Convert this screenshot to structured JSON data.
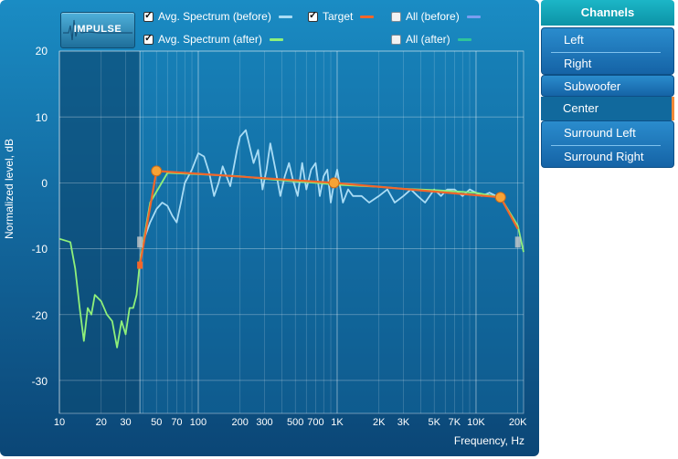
{
  "impulse_button": {
    "label": "IMPULSE"
  },
  "legend": [
    {
      "label": "Avg. Spectrum (before)",
      "checked": true,
      "color": "#a9dcf5"
    },
    {
      "label": "Target",
      "checked": true,
      "color": "#f2662a"
    },
    {
      "label": "All (before)",
      "checked": false,
      "color": "#7a9ef0"
    },
    {
      "label": "Avg. Spectrum (after)",
      "checked": true,
      "color": "#8ff07a"
    },
    {
      "label": "All (after)",
      "checked": false,
      "color": "#2ec49a"
    }
  ],
  "axes": {
    "ylabel": "Normalized level, dB",
    "xlabel": "Frequency, Hz",
    "yticks": [
      "20",
      "10",
      "0",
      "-10",
      "-20",
      "-30"
    ],
    "xticks": [
      "10",
      "20",
      "30",
      "50",
      "70",
      "100",
      "200",
      "300",
      "500",
      "700",
      "1K",
      "2K",
      "3K",
      "5K",
      "7K",
      "10K",
      "20K"
    ]
  },
  "sidebar": {
    "header": "Channels",
    "channels": [
      "Left",
      "Right",
      "Subwoofer",
      "Center",
      "Surround Left",
      "Surround Right"
    ],
    "selected": "Center"
  },
  "chart_data": {
    "type": "line",
    "x_scale": "log",
    "xlim": [
      10,
      22000
    ],
    "ylim": [
      -35,
      20
    ],
    "series": [
      {
        "name": "Target",
        "color": "#f2662a",
        "x": [
          38,
          50,
          950,
          15000,
          20000
        ],
        "y": [
          -12.5,
          1.8,
          0,
          -2.2,
          -7
        ]
      },
      {
        "name": "Avg. Spectrum (after)",
        "color": "#8ff07a",
        "x": [
          10,
          12,
          13,
          14,
          15,
          16,
          17,
          18,
          20,
          22,
          24,
          26,
          28,
          30,
          32,
          34,
          36,
          38,
          45,
          60,
          100,
          200,
          300,
          500,
          700,
          1000,
          2000,
          3000,
          5000,
          10000,
          15000,
          20000,
          22000
        ],
        "y": [
          -8.5,
          -9,
          -13,
          -19,
          -24,
          -19,
          -20,
          -17,
          -18,
          -20,
          -21,
          -25,
          -21,
          -23,
          -19,
          -19,
          -17,
          -12,
          -3,
          1.5,
          1.3,
          1,
          0.6,
          0.2,
          0,
          -0.3,
          -0.6,
          -0.9,
          -1.1,
          -1.5,
          -2.2,
          -6.5,
          -10.5
        ]
      },
      {
        "name": "Avg. Spectrum (before)",
        "color": "#a9dcf5",
        "x": [
          40,
          45,
          50,
          55,
          60,
          65,
          70,
          75,
          80,
          90,
          100,
          110,
          120,
          130,
          140,
          150,
          170,
          190,
          200,
          220,
          250,
          270,
          290,
          310,
          330,
          360,
          390,
          420,
          450,
          480,
          520,
          560,
          600,
          650,
          700,
          750,
          800,
          850,
          900,
          950,
          1000,
          1100,
          1200,
          1300,
          1500,
          1700,
          2000,
          2300,
          2600,
          3000,
          3400,
          3800,
          4300,
          5000,
          5600,
          6200,
          7000,
          8000,
          9000,
          10000,
          11000,
          12500,
          14000,
          15000
        ],
        "y": [
          -9,
          -6,
          -4,
          -3,
          -3.5,
          -5,
          -6,
          -3,
          0,
          2,
          4.5,
          4,
          1.5,
          -2,
          0,
          2.5,
          -0.5,
          5,
          7,
          8,
          3,
          5,
          -1,
          2,
          6,
          2,
          -2,
          1,
          3,
          0.5,
          -2,
          3,
          -1,
          2,
          3,
          -2,
          1,
          2,
          -3,
          0,
          2,
          -3,
          -1,
          -2,
          -2,
          -3,
          -2,
          -1,
          -3,
          -2,
          -1,
          -2,
          -3,
          -1,
          -2,
          -1,
          -1,
          -2,
          -1,
          -1.5,
          -2,
          -1.5,
          -2,
          -2
        ]
      }
    ]
  }
}
